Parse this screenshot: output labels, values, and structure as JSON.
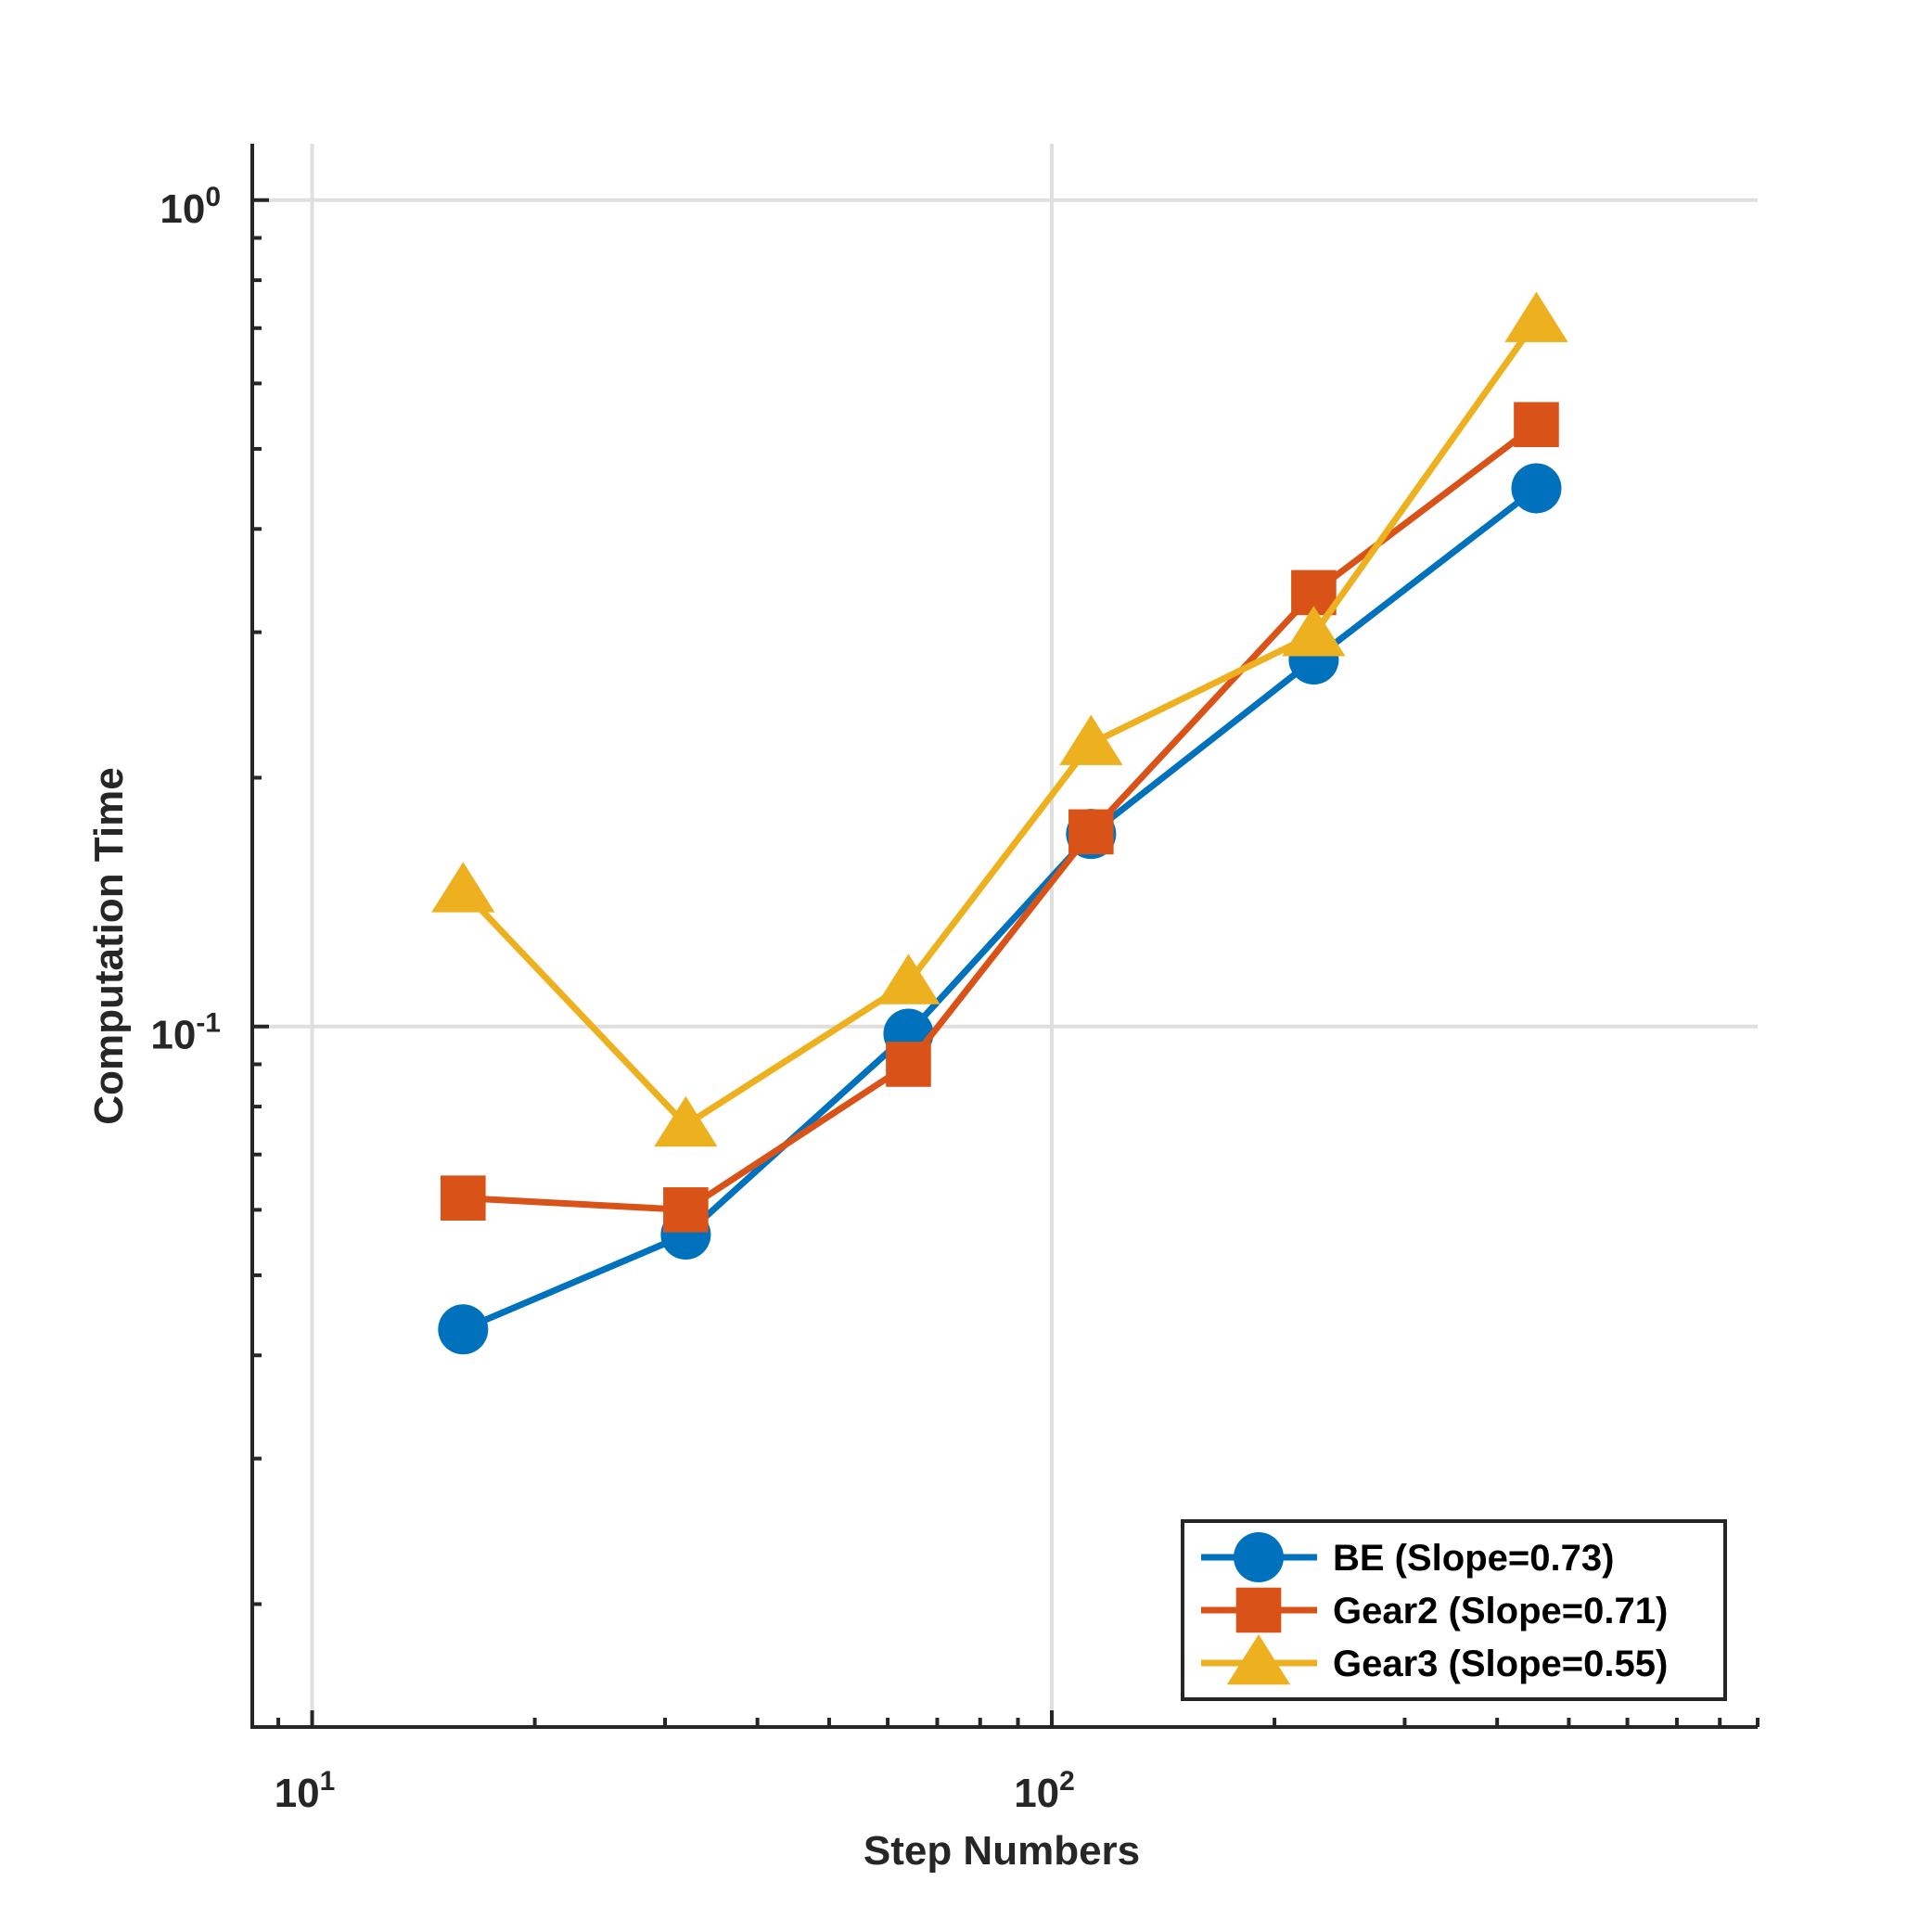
{
  "chart_data": {
    "type": "line",
    "xscale": "log",
    "yscale": "log",
    "xlabel": "Step Numbers",
    "ylabel": "Computation Time",
    "xlim": [
      8.3,
      900
    ],
    "ylim": [
      0.0142,
      1.17
    ],
    "grid": true,
    "x_ticks": [
      {
        "value": 10,
        "base": "10",
        "exp": "1"
      },
      {
        "value": 100,
        "base": "10",
        "exp": "2"
      }
    ],
    "y_ticks": [
      {
        "value": 1,
        "base": "10",
        "exp": "0"
      },
      {
        "value": 0.1,
        "base": "10",
        "exp": "-1"
      }
    ],
    "legend_position": "bottom-right",
    "series": [
      {
        "name": "BE (Slope=0.73)",
        "color": "#0072BD",
        "marker": "circle",
        "x": [
          16,
          32,
          64,
          113,
          226,
          452
        ],
        "y": [
          0.043,
          0.056,
          0.098,
          0.171,
          0.278,
          0.448
        ]
      },
      {
        "name": "Gear2 (Slope=0.71)",
        "color": "#D95319",
        "marker": "square",
        "x": [
          16,
          32,
          64,
          113,
          226,
          452
        ],
        "y": [
          0.062,
          0.06,
          0.09,
          0.172,
          0.335,
          0.535
        ]
      },
      {
        "name": "Gear3 (Slope=0.55)",
        "color": "#EDB120",
        "marker": "triangle",
        "x": [
          16,
          32,
          64,
          113,
          226,
          452
        ],
        "y": [
          0.146,
          0.076,
          0.113,
          0.22,
          0.298,
          0.715
        ]
      }
    ]
  }
}
